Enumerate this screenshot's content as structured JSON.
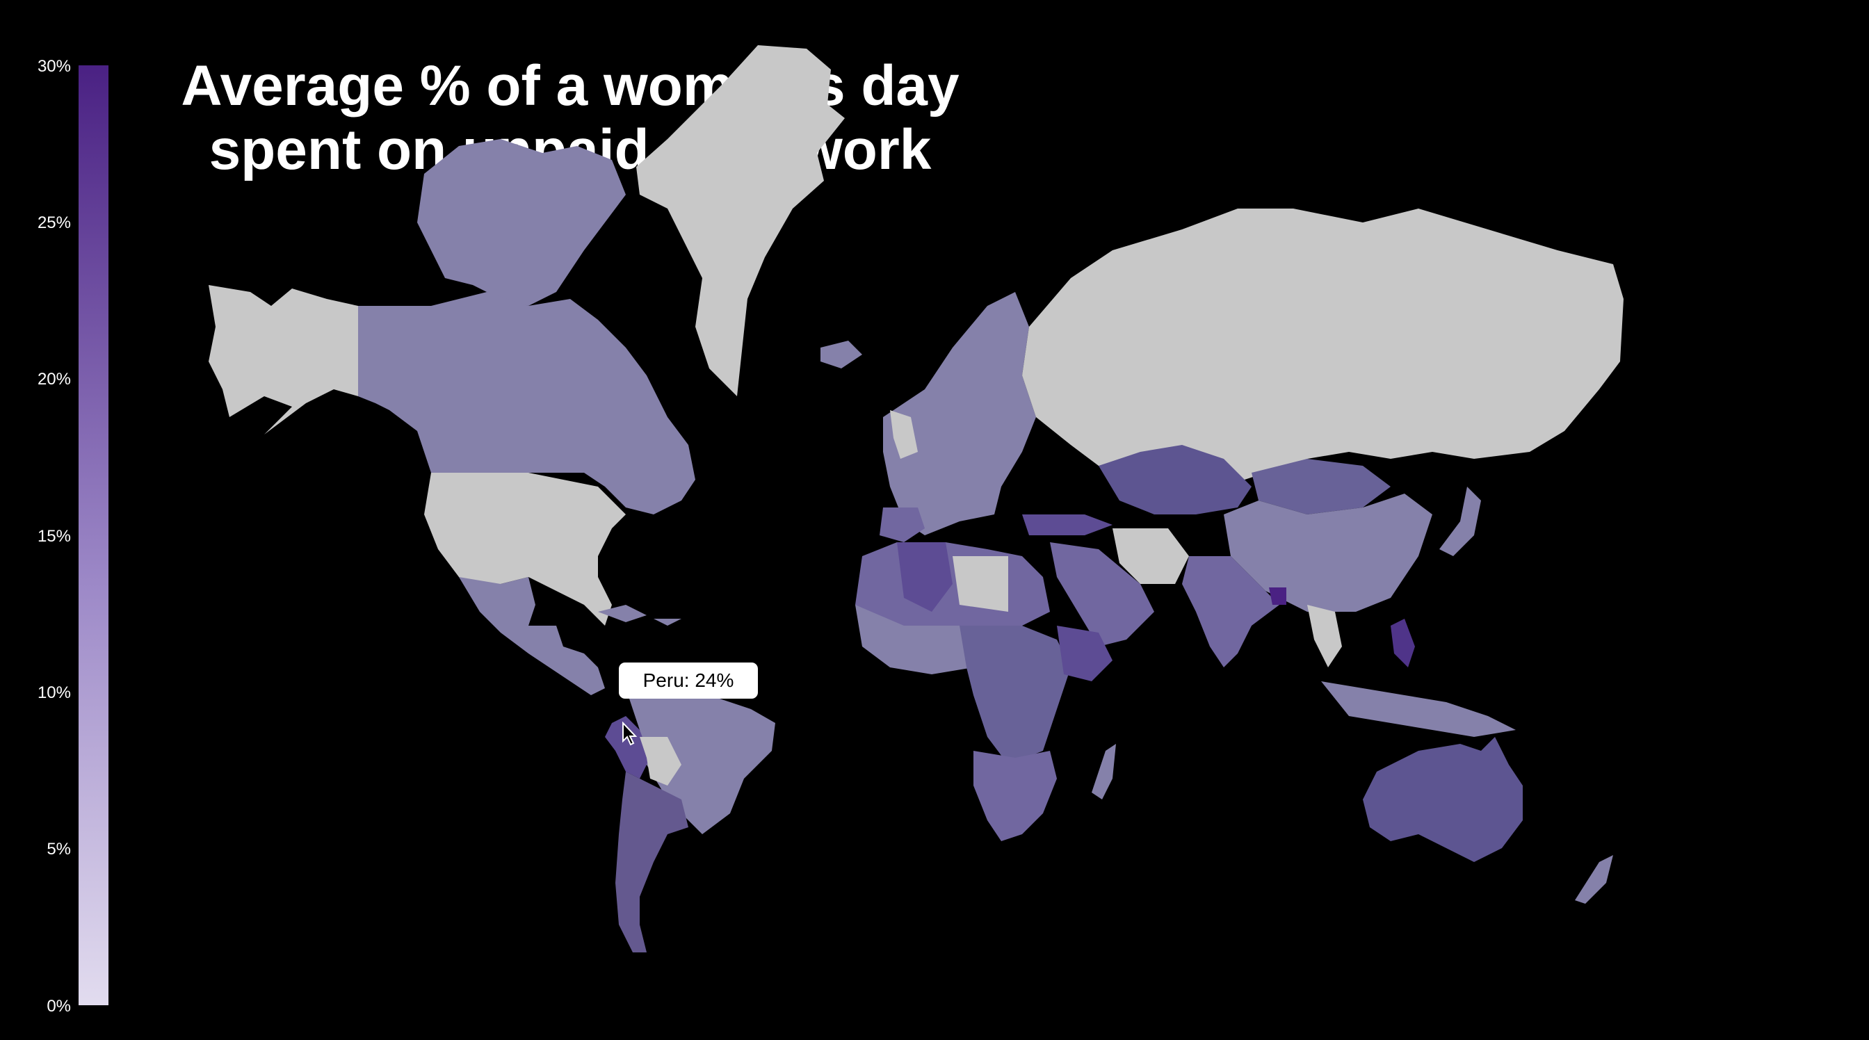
{
  "title_line1": "Average % of a woman's day",
  "title_line2": "spent on unpaid care work",
  "legend": {
    "ticks": [
      "30%",
      "25%",
      "20%",
      "15%",
      "10%",
      "5%",
      "0%"
    ],
    "min": 0,
    "max": 30,
    "color_high": "#4a2183",
    "color_low": "#e2dcef",
    "no_data_color": "#c8c8c8"
  },
  "tooltip": {
    "text": "Peru: 24%",
    "country": "Peru",
    "value": 24
  },
  "colors": {
    "background": "#000000",
    "text": "#ffffff"
  },
  "regions": {
    "no_data": [
      "Greenland",
      "Russia",
      "United States",
      "Alaska",
      "Bolivia",
      "Iran",
      "Libya",
      "Thailand"
    ],
    "values": {
      "Canada": 13,
      "Peru": 24,
      "Mexico": 12,
      "Argentina": 17,
      "Brazil": 12,
      "Australia": 17,
      "Kazakhstan": 18,
      "Mongolia": 17,
      "China": 14,
      "India": 14,
      "Algeria": 19,
      "Ethiopia": 20,
      "Turkey": 21,
      "Philippines": 22,
      "Bangladesh": 24
    }
  }
}
